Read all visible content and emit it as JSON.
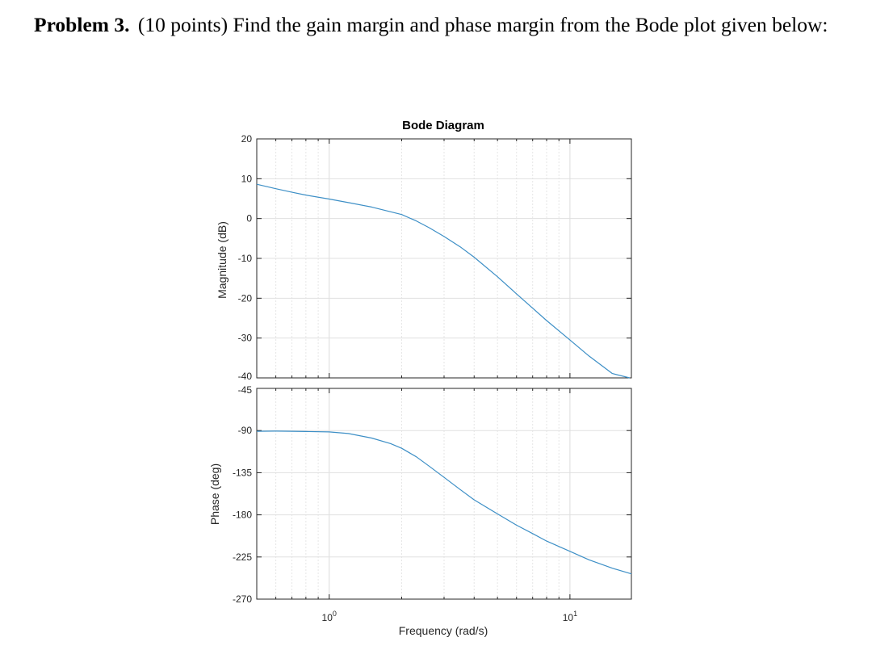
{
  "problem": {
    "label": "Problem 3.",
    "text": "(10 points) Find the gain margin and phase margin from the Bode plot given below:"
  },
  "chart_data": {
    "type": "line",
    "title": "Bode Diagram",
    "xlabel": "Frequency  (rad/s)",
    "xscale": "log",
    "xlim": [
      0.5,
      18
    ],
    "x_ticks": [
      {
        "base": "10",
        "exp": "0",
        "value": 1
      },
      {
        "base": "10",
        "exp": "1",
        "value": 10
      }
    ],
    "grid": true,
    "line_color": "#3d8fc6",
    "magnitude": {
      "ylabel": "Magnitude (dB)",
      "ylim": [
        -40,
        20
      ],
      "yticks": [
        "20",
        "10",
        "0",
        "-10",
        "-20",
        "-30",
        "-40"
      ],
      "series": [
        {
          "x": [
            0.5,
            0.6,
            0.7,
            0.8,
            1.0,
            1.2,
            1.5,
            2.0,
            2.3,
            2.6,
            3.0,
            3.5,
            4.0,
            5.0,
            6.0,
            8.0,
            10.0,
            12.0,
            15.0,
            17.7
          ],
          "values": [
            8.6,
            7.5,
            6.6,
            5.9,
            4.9,
            4.0,
            2.9,
            1.0,
            -0.6,
            -2.3,
            -4.5,
            -7.1,
            -9.7,
            -14.6,
            -18.9,
            -25.6,
            -30.5,
            -34.5,
            -38.9,
            -40.0
          ]
        }
      ]
    },
    "phase": {
      "ylabel": "Phase (deg)",
      "ylim": [
        -270,
        -45
      ],
      "yticks": [
        "-45",
        "-90",
        "-135",
        "-180",
        "-225",
        "-270"
      ],
      "series": [
        {
          "x": [
            0.5,
            0.6,
            0.7,
            0.8,
            1.0,
            1.2,
            1.5,
            1.8,
            2.0,
            2.3,
            2.6,
            3.0,
            3.5,
            4.0,
            5.0,
            6.0,
            7.0,
            8.0,
            10.0,
            12.0,
            15.0,
            18.0
          ],
          "values": [
            -90.8,
            -90.6,
            -90.8,
            -91.0,
            -91.5,
            -93.2,
            -98,
            -104,
            -109,
            -118,
            -128,
            -140,
            -153,
            -164,
            -179,
            -191,
            -200,
            -208,
            -219,
            -228,
            -237,
            -243
          ]
        }
      ]
    }
  }
}
